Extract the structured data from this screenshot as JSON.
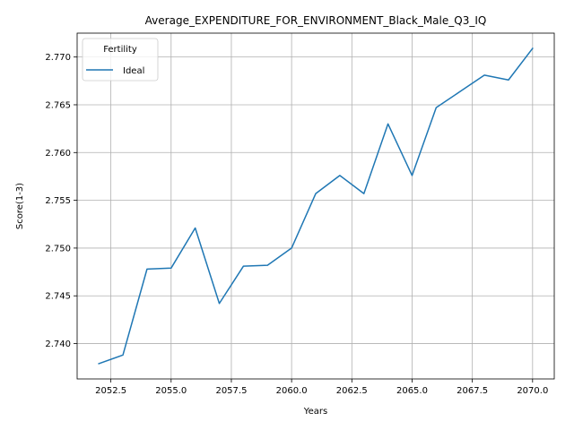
{
  "chart_data": {
    "type": "line",
    "title": "Average_EXPENDITURE_FOR_ENVIRONMENT_Black_Male_Q3_IQ",
    "xlabel": "Years",
    "ylabel": "Score(1-3)",
    "xlim": [
      2051.1,
      2070.9
    ],
    "ylim": [
      2.7363,
      2.7725
    ],
    "x_ticks": [
      2052.5,
      2055.0,
      2057.5,
      2060.0,
      2062.5,
      2065.0,
      2067.5,
      2070.0
    ],
    "x_tick_labels": [
      "2052.5",
      "2055.0",
      "2057.5",
      "2060.0",
      "2062.5",
      "2065.0",
      "2067.5",
      "2070.0"
    ],
    "y_ticks": [
      2.74,
      2.745,
      2.75,
      2.755,
      2.76,
      2.765,
      2.77
    ],
    "y_tick_labels": [
      "2.740",
      "2.745",
      "2.750",
      "2.755",
      "2.760",
      "2.765",
      "2.770"
    ],
    "grid": true,
    "legend": {
      "title": "Fertility",
      "placement": "top-left"
    },
    "series": [
      {
        "name": "Ideal",
        "color": "#1f77b4",
        "x": [
          2052,
          2053,
          2054,
          2055,
          2056,
          2057,
          2058,
          2059,
          2060,
          2061,
          2062,
          2063,
          2064,
          2065,
          2066,
          2067,
          2068,
          2069,
          2070
        ],
        "y": [
          2.7379,
          2.7388,
          2.7478,
          2.7479,
          2.7521,
          2.7442,
          2.7481,
          2.7482,
          2.75,
          2.7557,
          2.7576,
          2.7557,
          2.763,
          2.7576,
          2.7647,
          2.7664,
          2.7681,
          2.7676,
          2.7709
        ]
      }
    ]
  }
}
